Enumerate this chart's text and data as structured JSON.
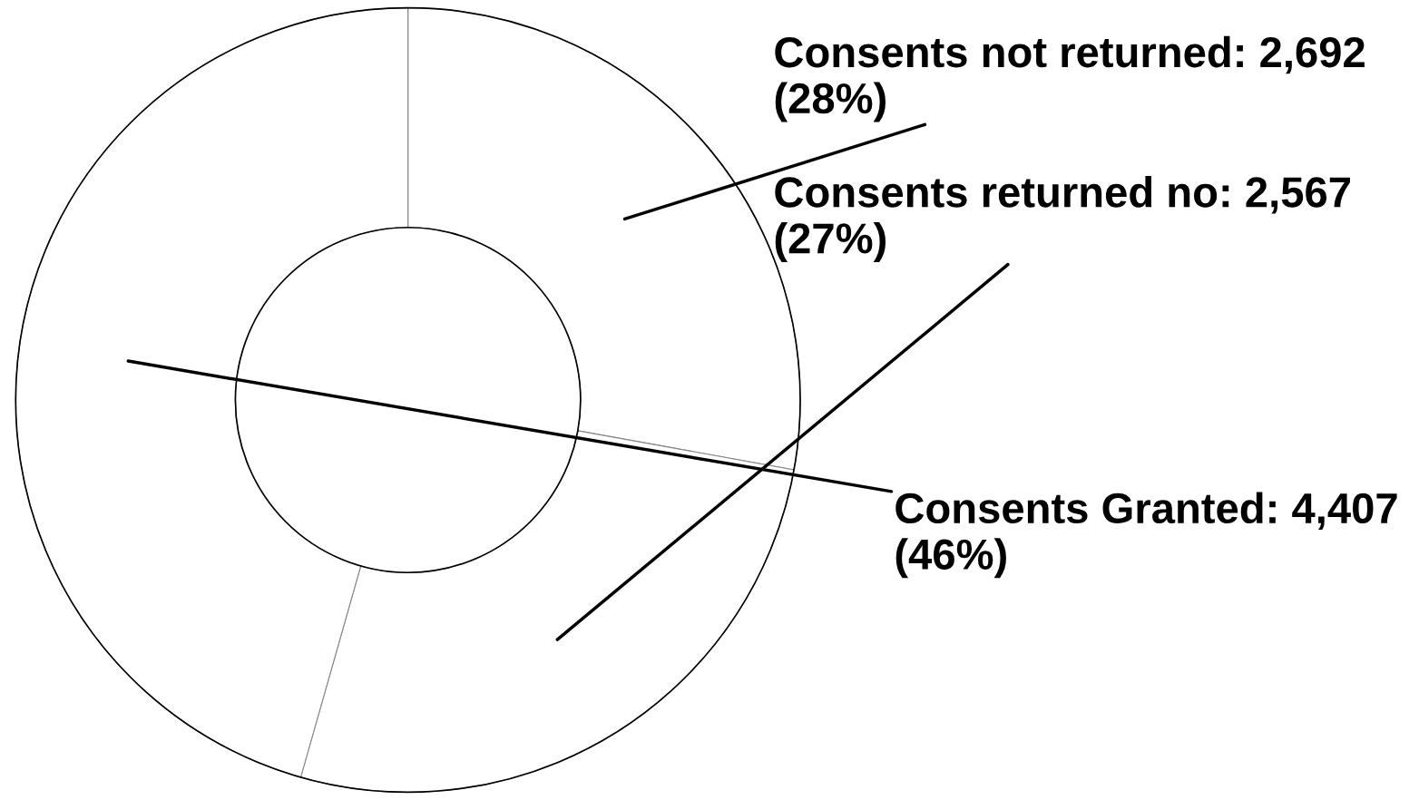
{
  "chart_data": {
    "type": "donut",
    "categories": [
      "Consents not returned",
      "Consents returned no",
      "Consents Granted"
    ],
    "values": [
      2692,
      2567,
      4407
    ],
    "value_labels": [
      "2,692 (28%)",
      "2,567 (27%)",
      "4,407 (46%)"
    ],
    "colors": [
      "#ffffff",
      "#ffffff",
      "#ffffff"
    ],
    "legend": false
  }
}
